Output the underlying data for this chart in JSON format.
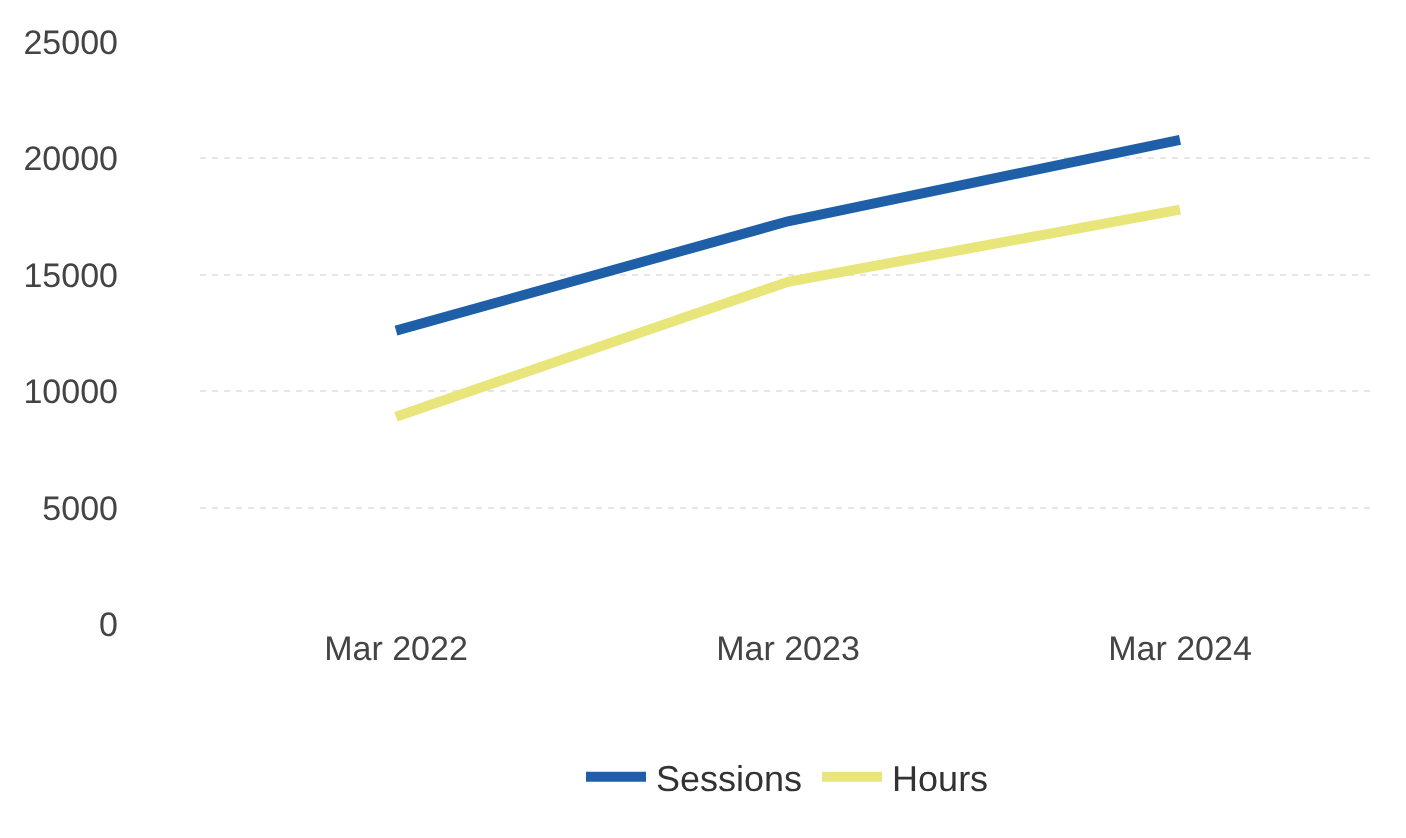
{
  "chart_data": {
    "type": "line",
    "categories": [
      "Mar 2022",
      "Mar 2023",
      "Mar 2024"
    ],
    "series": [
      {
        "name": "Sessions",
        "color": "#1f5fa8",
        "values": [
          12600,
          17300,
          20800
        ]
      },
      {
        "name": "Hours",
        "color": "#e8e67a",
        "values": [
          8900,
          14700,
          17800
        ]
      }
    ],
    "ylim": [
      0,
      25000
    ],
    "yticks": [
      0,
      5000,
      10000,
      15000,
      20000,
      25000
    ],
    "grid": "y",
    "legend": "bottom",
    "marker": "none",
    "line_style": "solid"
  }
}
